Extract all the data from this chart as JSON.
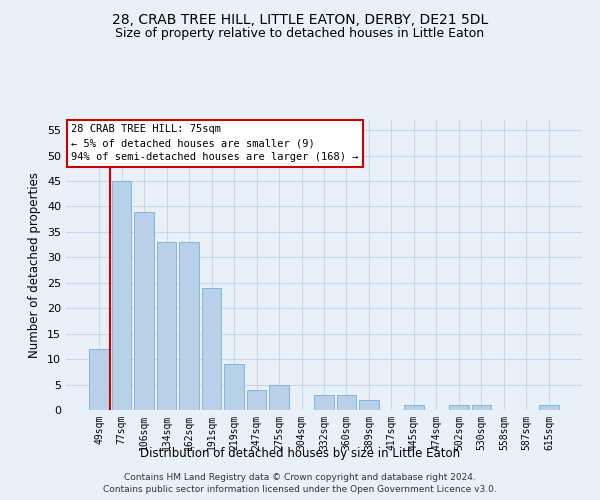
{
  "title": "28, CRAB TREE HILL, LITTLE EATON, DERBY, DE21 5DL",
  "subtitle": "Size of property relative to detached houses in Little Eaton",
  "xlabel": "Distribution of detached houses by size in Little Eaton",
  "ylabel": "Number of detached properties",
  "bar_color": "#b8d0e8",
  "bar_edge_color": "#7aafd4",
  "property_line_color": "#cc0000",
  "background_color": "#e8f0f8",
  "categories": [
    "49sqm",
    "77sqm",
    "106sqm",
    "134sqm",
    "162sqm",
    "191sqm",
    "219sqm",
    "247sqm",
    "275sqm",
    "304sqm",
    "332sqm",
    "360sqm",
    "389sqm",
    "417sqm",
    "445sqm",
    "474sqm",
    "502sqm",
    "530sqm",
    "558sqm",
    "587sqm",
    "615sqm"
  ],
  "values": [
    12,
    45,
    39,
    33,
    33,
    24,
    9,
    4,
    5,
    0,
    3,
    3,
    2,
    0,
    1,
    0,
    1,
    1,
    0,
    0,
    1
  ],
  "ylim": [
    0,
    57
  ],
  "yticks": [
    0,
    5,
    10,
    15,
    20,
    25,
    30,
    35,
    40,
    45,
    50,
    55
  ],
  "annotation_title": "28 CRAB TREE HILL: 75sqm",
  "annotation_line1": "← 5% of detached houses are smaller (9)",
  "annotation_line2": "94% of semi-detached houses are larger (168) →",
  "footer1": "Contains HM Land Registry data © Crown copyright and database right 2024.",
  "footer2": "Contains public sector information licensed under the Open Government Licence v3.0.",
  "grid_color": "#c8d8e8",
  "title_fontsize": 10,
  "subtitle_fontsize": 9,
  "annotation_box_color": "#ffffff",
  "annotation_box_edge": "#cc0000"
}
